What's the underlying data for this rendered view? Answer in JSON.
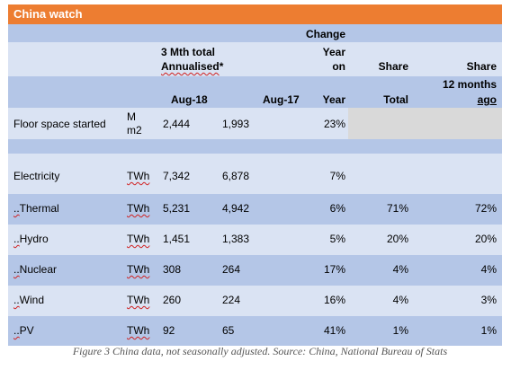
{
  "title": "China watch",
  "header": {
    "r1_change": "Change",
    "r2_col_a_line1": "3 Mth total",
    "r2_col_a_line2_pre": "Annualised",
    "r2_col_a_line2_post": "*",
    "r2_change_line1": "Year",
    "r2_change_line2": "on",
    "r2_share": "Share",
    "r2_share12_line1": "Share",
    "r3_share12_line2": "12 months",
    "r3_aug18": "Aug-18",
    "r3_aug17": "Aug-17",
    "r3_year": "Year",
    "r3_total": "Total",
    "r3_ago": "ago"
  },
  "rows": [
    {
      "label": "Floor space started",
      "unit_line1": "M",
      "unit_line2": "m2",
      "v1": "2,444",
      "v2": "1,993",
      "chg": "23%",
      "share": "",
      "share12": ""
    },
    {
      "label": "Electricity",
      "unit": "TWh",
      "v1": "7,342",
      "v2": "6,878",
      "chg": "7%",
      "share": "",
      "share12": ""
    },
    {
      "label_prefix": "..",
      "label": "Thermal",
      "unit": "TWh",
      "v1": "5,231",
      "v2": "4,942",
      "chg": "6%",
      "share": "71%",
      "share12": "72%"
    },
    {
      "label_prefix": "..",
      "label": "Hydro",
      "unit": "TWh",
      "v1": "1,451",
      "v2": "1,383",
      "chg": "5%",
      "share": "20%",
      "share12": "20%"
    },
    {
      "label_prefix": "..",
      "label": "Nuclear",
      "unit": "TWh",
      "v1": "308",
      "v2": "264",
      "chg": "17%",
      "share": "4%",
      "share12": "4%"
    },
    {
      "label_prefix": "..",
      "label": "Wind",
      "unit": "TWh",
      "v1": "260",
      "v2": "224",
      "chg": "16%",
      "share": "4%",
      "share12": "3%"
    },
    {
      "label_prefix": "..",
      "label": "PV",
      "unit": "TWh",
      "v1": "92",
      "v2": "65",
      "chg": "41%",
      "share": "1%",
      "share12": "1%"
    }
  ],
  "caption": "Figure 3 China data, not seasonally adjusted. Source: China, National Bureau of Stats",
  "colors": {
    "title_bg": "#ed7d31",
    "band_dark": "#b4c6e7",
    "band_light": "#dae3f3",
    "gray": "#d9d9d9"
  }
}
